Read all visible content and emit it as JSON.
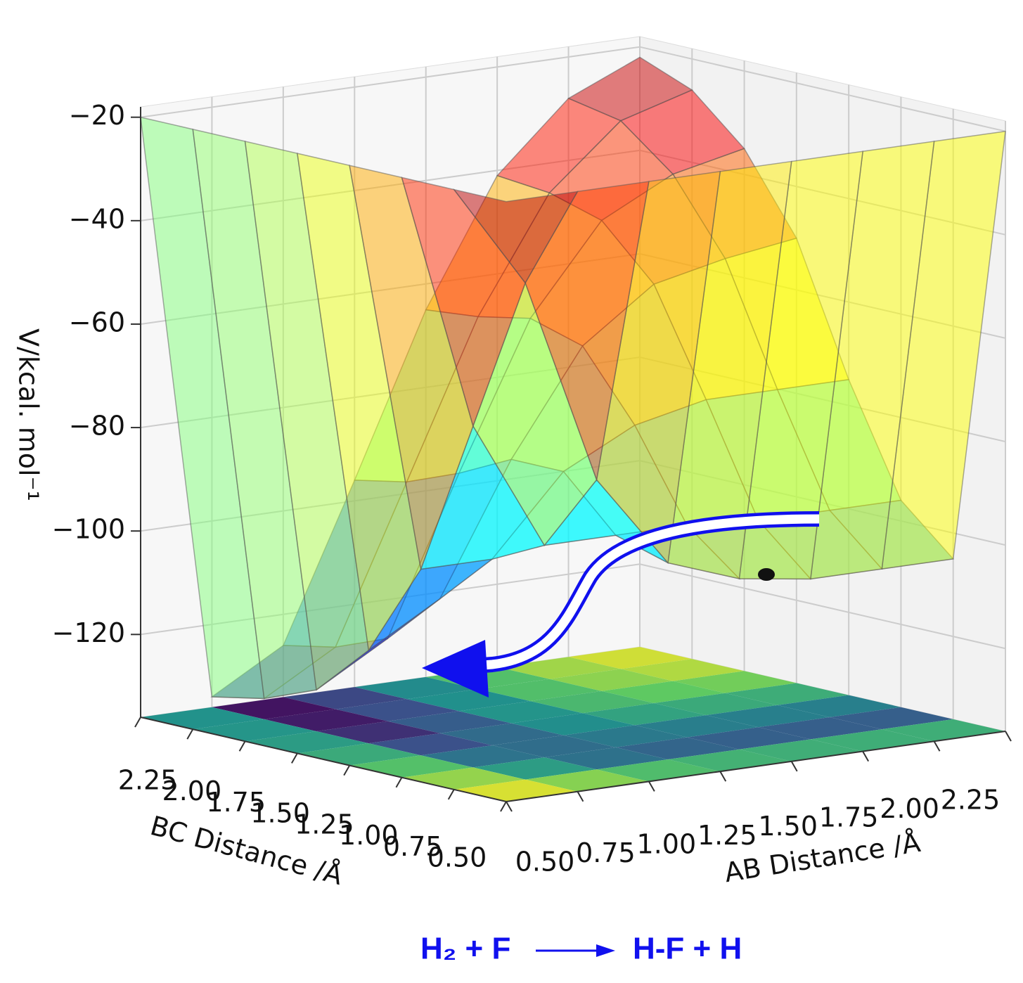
{
  "chart_data": {
    "type": "surface",
    "zlabel": "V/kcal. mol⁻¹",
    "xlabel": "AB Distance /Å",
    "ylabel": "BC Distance /Å",
    "x": [
      0.5,
      0.75,
      1.0,
      1.25,
      1.5,
      1.75,
      2.0,
      2.25
    ],
    "y": [
      0.5,
      0.75,
      1.0,
      1.25,
      1.5,
      1.75,
      2.0,
      2.25
    ],
    "z": [
      [
        -20,
        -20,
        -20,
        -20,
        -20,
        -20,
        -20,
        -20
      ],
      [
        -20,
        -40,
        -80,
        -98,
        -103,
        -105,
        -105,
        -105
      ],
      [
        -20,
        -70,
        -95,
        -95,
        -95,
        -96,
        -96,
        -96
      ],
      [
        -20,
        -100,
        -100,
        -85,
        -78,
        -75,
        -75,
        -75
      ],
      [
        -20,
        -118,
        -110,
        -85,
        -65,
        -55,
        -52,
        -50
      ],
      [
        -20,
        -128,
        -120,
        -90,
        -62,
        -45,
        -38,
        -35
      ],
      [
        -20,
        -132,
        -124,
        -94,
        -64,
        -42,
        -30,
        -26
      ],
      [
        -20,
        -134,
        -126,
        -96,
        -65,
        -41,
        -28,
        -22
      ]
    ],
    "xlim": [
      0.5,
      2.25
    ],
    "ylim": [
      0.5,
      2.25
    ],
    "zlim": [
      -136,
      -18
    ],
    "xticks": [
      {
        "value": 0.5,
        "label": "0.50"
      },
      {
        "value": 0.75,
        "label": "0.75"
      },
      {
        "value": 1.0,
        "label": "1.00"
      },
      {
        "value": 1.25,
        "label": "1.25"
      },
      {
        "value": 1.5,
        "label": "1.50"
      },
      {
        "value": 1.75,
        "label": "1.75"
      },
      {
        "value": 2.0,
        "label": "2.00"
      },
      {
        "value": 2.25,
        "label": "2.25"
      }
    ],
    "yticks": [
      {
        "value": 0.5,
        "label": "0.50"
      },
      {
        "value": 0.75,
        "label": "0.75"
      },
      {
        "value": 1.0,
        "label": "1.00"
      },
      {
        "value": 1.25,
        "label": "1.25"
      },
      {
        "value": 1.5,
        "label": "1.50"
      },
      {
        "value": 1.75,
        "label": "1.75"
      },
      {
        "value": 2.0,
        "label": "2.00"
      },
      {
        "value": 2.25,
        "label": "2.25"
      }
    ],
    "zticks": [
      {
        "value": -20,
        "label": "−20"
      },
      {
        "value": -40,
        "label": "−40"
      },
      {
        "value": -60,
        "label": "−60"
      },
      {
        "value": -80,
        "label": "−80"
      },
      {
        "value": -100,
        "label": "−100"
      },
      {
        "value": -120,
        "label": "−120"
      }
    ],
    "colormap": "jet",
    "floor_colormap": "viridis",
    "grid": true,
    "reaction": {
      "reactants": "H₂ + F",
      "products": "H-F + H"
    }
  }
}
